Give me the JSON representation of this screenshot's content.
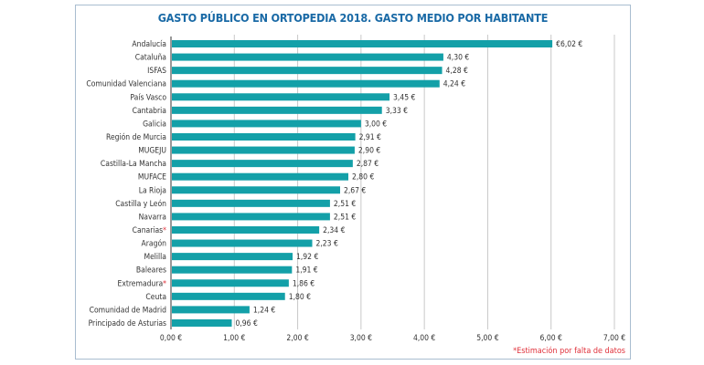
{
  "chart_data": {
    "type": "bar",
    "orientation": "horizontal",
    "title": "GASTO PÚBLICO EN ORTOPEDIA 2018. GASTO MEDIO POR HABITANTE",
    "categories": [
      "Andalucía",
      "Cataluña",
      "ISFAS",
      "Comunidad Valenciana",
      "País Vasco",
      "Cantabria",
      "Galicia",
      "Región de Murcia",
      "MUGEJU",
      "Castilla-La Mancha",
      "MUFACE",
      "La Rioja",
      "Castilla y León",
      "Navarra",
      "Canarias",
      "Aragón",
      "Melilla",
      "Baleares",
      "Extremadura",
      "Ceuta",
      "Comunidad de Madrid",
      "Principado de Asturias"
    ],
    "asterisk": [
      false,
      false,
      false,
      false,
      false,
      false,
      false,
      false,
      false,
      false,
      false,
      false,
      false,
      false,
      true,
      false,
      false,
      false,
      true,
      false,
      false,
      false
    ],
    "values": [
      6.02,
      4.3,
      4.28,
      4.24,
      3.45,
      3.33,
      3.0,
      2.91,
      2.9,
      2.87,
      2.8,
      2.67,
      2.51,
      2.51,
      2.34,
      2.23,
      1.92,
      1.91,
      1.86,
      1.8,
      1.24,
      0.96
    ],
    "data_labels": [
      "€6,02 €",
      "4,30 €",
      "4,28 €",
      "4,24 €",
      "3,45 €",
      "3,33 €",
      "3,00 €",
      "2,91 €",
      "2,90 €",
      "2,87 €",
      "2,80 €",
      "2,67 €",
      "2,51 €",
      "2,51 €",
      "2,34 €",
      "2,23 €",
      "1,92 €",
      "1,91 €",
      "1,86 €",
      "1,80 €",
      "1,24 €",
      "0,96 €"
    ],
    "xlim": [
      0,
      7
    ],
    "xticks": [
      0,
      1,
      2,
      3,
      4,
      5,
      6,
      7
    ],
    "xtick_labels": [
      "0,00 €",
      "1,00 €",
      "2,00 €",
      "3,00 €",
      "4,00 €",
      "5,00 €",
      "6,00 €",
      "7,00 €"
    ],
    "grid": "vertical",
    "bar_color": "#13a0a8",
    "asterisk_color": "#e0303a",
    "footnote": "*Estimación por falta de datos"
  }
}
